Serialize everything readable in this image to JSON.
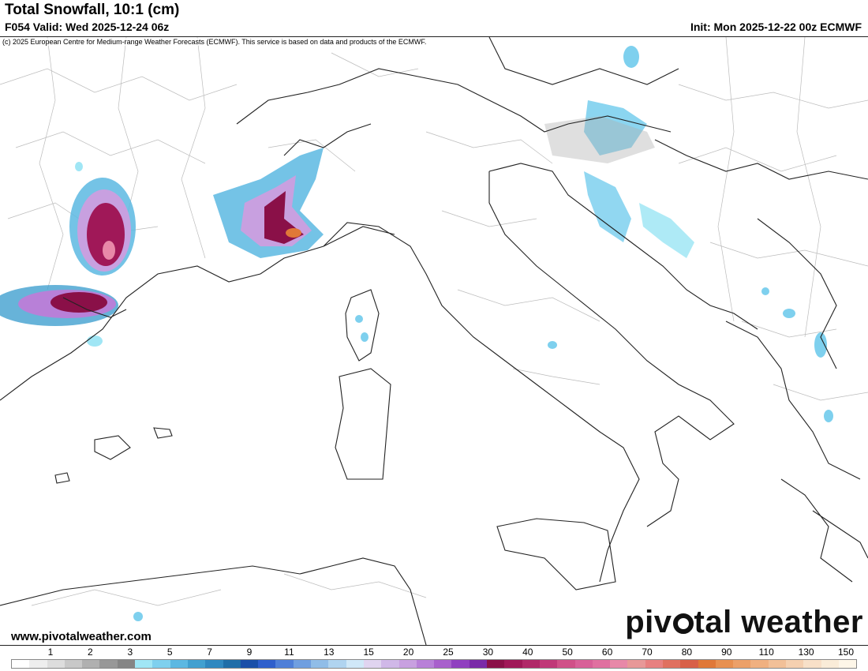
{
  "header": {
    "title": "Total Snowfall, 10:1 (cm)",
    "valid": "F054 Valid: Wed 2025-12-24 06z",
    "init": "Init: Mon 2025-12-22 00z ECMWF"
  },
  "map": {
    "copyright": "(c) 2025 European Centre for Medium-range Weather Forecasts (ECMWF). This service is based on data and products of the ECMWF.",
    "site_url": "www.pivotalweather.com",
    "brand_before": "piv",
    "brand_after": "tal weather",
    "colors": {
      "sea": "#ffffff",
      "land": "#ffffff",
      "border": "#222222",
      "admin": "#bbbbbb"
    }
  },
  "legend": {
    "ticks": [
      "1",
      "2",
      "3",
      "5",
      "7",
      "9",
      "11",
      "13",
      "15",
      "20",
      "25",
      "30",
      "40",
      "50",
      "60",
      "70",
      "80",
      "90",
      "110",
      "130",
      "150"
    ],
    "colors": [
      "#ffffff",
      "#eeeeee",
      "#dddddd",
      "#c8c8c8",
      "#b0b0b0",
      "#989898",
      "#858585",
      "#a0e6f5",
      "#7ed0ee",
      "#5cb8e2",
      "#41a0d0",
      "#2f88c0",
      "#1f6ea8",
      "#1a4fa8",
      "#2f5fcc",
      "#4f7fd8",
      "#709fe0",
      "#90bde8",
      "#b0d4f0",
      "#d0e8f8",
      "#e0d4f0",
      "#d0b8e8",
      "#c8a0e0",
      "#b880d8",
      "#a860cc",
      "#9040c0",
      "#7a2aa8",
      "#8a1048",
      "#a01858",
      "#b02868",
      "#c03878",
      "#d05088",
      "#d86098",
      "#e070a0",
      "#e888a8",
      "#e89898",
      "#e88080",
      "#e07060",
      "#d86048",
      "#e07838",
      "#e89050",
      "#eca068",
      "#f0b080",
      "#f2c098",
      "#f5d0b0",
      "#f8e0c8",
      "#faecd8",
      "#fdf6e8"
    ]
  }
}
